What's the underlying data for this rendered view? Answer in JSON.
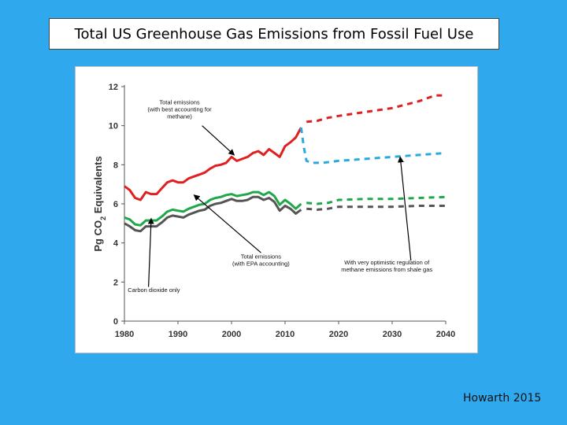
{
  "slide": {
    "title": "Total US Greenhouse Gas Emissions from Fossil Fuel Use",
    "credit": "Howarth 2015"
  },
  "chart_data": {
    "type": "line",
    "title": "Total US Greenhouse Gas Emissions from Fossil Fuel Use",
    "xlabel": "",
    "ylabel": "Pg CO2 Equivalents",
    "xlim": [
      1980,
      2040
    ],
    "ylim": [
      0,
      12
    ],
    "x_ticks": [
      1980,
      1990,
      2000,
      2010,
      2020,
      2030,
      2040
    ],
    "y_ticks": [
      0,
      2,
      4,
      6,
      8,
      10,
      12
    ],
    "grid": false,
    "colors": {
      "total_best": "#e02020",
      "total_epa": "#1fa84a",
      "co2_only": "#555555",
      "optimistic": "#2aa9df"
    },
    "series": [
      {
        "key": "total_best",
        "style": "solid",
        "points": [
          [
            1980,
            6.9
          ],
          [
            1981,
            6.7
          ],
          [
            1982,
            6.3
          ],
          [
            1983,
            6.2
          ],
          [
            1984,
            6.6
          ],
          [
            1985,
            6.5
          ],
          [
            1986,
            6.5
          ],
          [
            1987,
            6.8
          ],
          [
            1988,
            7.1
          ],
          [
            1989,
            7.2
          ],
          [
            1990,
            7.1
          ],
          [
            1991,
            7.1
          ],
          [
            1992,
            7.3
          ],
          [
            1993,
            7.4
          ],
          [
            1994,
            7.5
          ],
          [
            1995,
            7.6
          ],
          [
            1996,
            7.8
          ],
          [
            1997,
            7.95
          ],
          [
            1998,
            8.0
          ],
          [
            1999,
            8.1
          ],
          [
            2000,
            8.4
          ],
          [
            2001,
            8.2
          ],
          [
            2002,
            8.3
          ],
          [
            2003,
            8.4
          ],
          [
            2004,
            8.6
          ],
          [
            2005,
            8.7
          ],
          [
            2006,
            8.5
          ],
          [
            2007,
            8.8
          ],
          [
            2008,
            8.6
          ],
          [
            2009,
            8.4
          ],
          [
            2010,
            8.95
          ],
          [
            2011,
            9.15
          ],
          [
            2012,
            9.4
          ],
          [
            2013,
            9.9
          ]
        ]
      },
      {
        "key": "total_best",
        "style": "dashed",
        "points": [
          [
            2014,
            10.2
          ],
          [
            2016,
            10.25
          ],
          [
            2018,
            10.4
          ],
          [
            2020,
            10.5
          ],
          [
            2025,
            10.7
          ],
          [
            2030,
            10.9
          ],
          [
            2035,
            11.25
          ],
          [
            2038,
            11.55
          ],
          [
            2040,
            11.55
          ]
        ]
      },
      {
        "key": "optimistic",
        "style": "dashed",
        "points": [
          [
            2013,
            9.9
          ],
          [
            2013.5,
            8.9
          ],
          [
            2014,
            8.2
          ],
          [
            2015,
            8.1
          ],
          [
            2017,
            8.1
          ],
          [
            2020,
            8.2
          ],
          [
            2025,
            8.3
          ],
          [
            2030,
            8.4
          ],
          [
            2035,
            8.5
          ],
          [
            2040,
            8.6
          ]
        ]
      },
      {
        "key": "total_epa",
        "style": "solid",
        "points": [
          [
            1980,
            5.3
          ],
          [
            1981,
            5.2
          ],
          [
            1982,
            4.95
          ],
          [
            1983,
            4.9
          ],
          [
            1984,
            5.15
          ],
          [
            1985,
            5.15
          ],
          [
            1986,
            5.15
          ],
          [
            1987,
            5.35
          ],
          [
            1988,
            5.6
          ],
          [
            1989,
            5.7
          ],
          [
            1990,
            5.65
          ],
          [
            1991,
            5.6
          ],
          [
            1992,
            5.75
          ],
          [
            1993,
            5.85
          ],
          [
            1994,
            5.95
          ],
          [
            1995,
            6.0
          ],
          [
            1996,
            6.2
          ],
          [
            1997,
            6.3
          ],
          [
            1998,
            6.35
          ],
          [
            1999,
            6.45
          ],
          [
            2000,
            6.5
          ],
          [
            2001,
            6.4
          ],
          [
            2002,
            6.45
          ],
          [
            2003,
            6.5
          ],
          [
            2004,
            6.6
          ],
          [
            2005,
            6.6
          ],
          [
            2006,
            6.45
          ],
          [
            2007,
            6.6
          ],
          [
            2008,
            6.4
          ],
          [
            2009,
            5.95
          ],
          [
            2010,
            6.2
          ],
          [
            2011,
            6.0
          ],
          [
            2012,
            5.75
          ],
          [
            2013,
            6.0
          ]
        ]
      },
      {
        "key": "total_epa",
        "style": "dashed",
        "points": [
          [
            2014,
            6.05
          ],
          [
            2016,
            6.0
          ],
          [
            2018,
            6.05
          ],
          [
            2020,
            6.2
          ],
          [
            2025,
            6.25
          ],
          [
            2030,
            6.25
          ],
          [
            2035,
            6.3
          ],
          [
            2040,
            6.35
          ]
        ]
      },
      {
        "key": "co2_only",
        "style": "solid",
        "points": [
          [
            1980,
            5.0
          ],
          [
            1981,
            4.85
          ],
          [
            1982,
            4.65
          ],
          [
            1983,
            4.6
          ],
          [
            1984,
            4.85
          ],
          [
            1985,
            4.85
          ],
          [
            1986,
            4.85
          ],
          [
            1987,
            5.05
          ],
          [
            1988,
            5.3
          ],
          [
            1989,
            5.4
          ],
          [
            1990,
            5.35
          ],
          [
            1991,
            5.3
          ],
          [
            1992,
            5.45
          ],
          [
            1993,
            5.55
          ],
          [
            1994,
            5.65
          ],
          [
            1995,
            5.7
          ],
          [
            1996,
            5.9
          ],
          [
            1997,
            6.0
          ],
          [
            1998,
            6.05
          ],
          [
            1999,
            6.15
          ],
          [
            2000,
            6.25
          ],
          [
            2001,
            6.15
          ],
          [
            2002,
            6.15
          ],
          [
            2003,
            6.2
          ],
          [
            2004,
            6.35
          ],
          [
            2005,
            6.35
          ],
          [
            2006,
            6.2
          ],
          [
            2007,
            6.3
          ],
          [
            2008,
            6.1
          ],
          [
            2009,
            5.65
          ],
          [
            2010,
            5.9
          ],
          [
            2011,
            5.75
          ],
          [
            2012,
            5.5
          ],
          [
            2013,
            5.7
          ]
        ]
      },
      {
        "key": "co2_only",
        "style": "dashed",
        "points": [
          [
            2014,
            5.75
          ],
          [
            2016,
            5.7
          ],
          [
            2018,
            5.75
          ],
          [
            2020,
            5.85
          ],
          [
            2025,
            5.85
          ],
          [
            2030,
            5.85
          ],
          [
            2035,
            5.9
          ],
          [
            2040,
            5.9
          ]
        ]
      }
    ],
    "annotations": [
      {
        "lines": [
          "Total emissions",
          "(with best accounting for",
          "methane)"
        ],
        "text_at": [
          1990.3,
          11.1
        ],
        "arrow_from": [
          1994.5,
          10.0
        ],
        "arrow_to": [
          2000.5,
          8.5
        ]
      },
      {
        "lines": [
          "Total emissions",
          "(with EPA accounting)"
        ],
        "text_at": [
          2005.5,
          3.2
        ],
        "arrow_from": [
          2005.5,
          3.5
        ],
        "arrow_to": [
          1993,
          6.45
        ]
      },
      {
        "lines": [
          "With very optimistic regulation of",
          "methane emissions from shale gas"
        ],
        "text_at": [
          2029,
          2.9
        ],
        "arrow_from": [
          2033.5,
          3.1
        ],
        "arrow_to": [
          2031.5,
          8.4
        ]
      },
      {
        "lines": [
          "Carbon dioxide only"
        ],
        "text_at": [
          1985.5,
          1.5
        ],
        "arrow_from": [
          1984.5,
          1.75
        ],
        "arrow_to": [
          1985,
          5.25
        ]
      }
    ]
  }
}
